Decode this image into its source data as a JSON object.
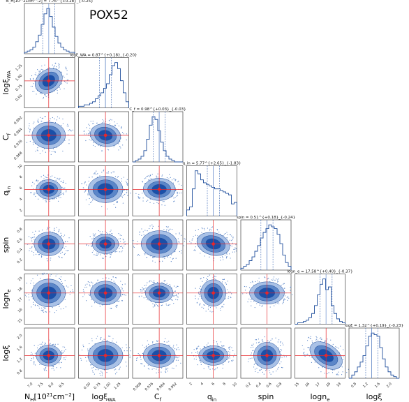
{
  "chart_data": {
    "type": "corner",
    "object_name": "POX52",
    "parameters": [
      {
        "key": "nh",
        "label_base": "N",
        "label_sub": "H",
        "label_rest": "[10",
        "label_sup": "21",
        "label_end": "cm",
        "label_sup2": "−2",
        "label_close": "]",
        "ticks": [
          "7.0",
          "7.5",
          "8.0",
          "8.5"
        ],
        "range": [
          6.6,
          9.0
        ],
        "median": 7.76,
        "title": "NH[10²¹cm⁻²] = 7.76 +0.28 −0.25"
      },
      {
        "key": "xiwa",
        "label_base": "logξ",
        "label_sub": "WA",
        "ticks": [
          "0.50",
          "0.75",
          "1.00",
          "1.25"
        ],
        "range": [
          0.2,
          1.45
        ],
        "median": 0.87,
        "title": "logξWA = 0.87 +0.18 −0.20"
      },
      {
        "key": "cf",
        "label_base": "C",
        "label_sub": "f",
        "ticks": [
          "0.968",
          "0.976",
          "0.984",
          "0.992"
        ],
        "range": [
          0.962,
          0.996
        ],
        "median": 0.98,
        "title": "Cf = 0.98 +0.03 −0.03"
      },
      {
        "key": "qin",
        "label_base": "q",
        "label_sub": "in",
        "ticks": [
          "2",
          "4",
          "6",
          "8",
          "10"
        ],
        "range": [
          1,
          10
        ],
        "median": 5.77,
        "title": "qin = 5.77 +2.65 −1.83"
      },
      {
        "key": "spin",
        "label_base": "spin",
        "label_sub": "",
        "ticks": [
          "0.2",
          "0.4",
          "0.6",
          "0.8"
        ],
        "range": [
          0.0,
          0.98
        ],
        "median": 0.51,
        "title": "spin = 0.51 +0.18 −0.24"
      },
      {
        "key": "ne",
        "label_base": "logn",
        "label_sub": "e",
        "ticks": [
          "15",
          "16",
          "17",
          "18",
          "19"
        ],
        "range": [
          14.6,
          19.4
        ],
        "median": 17.58,
        "title": "logne = 17.58 +0.40 −0.37"
      },
      {
        "key": "xi",
        "label_base": "logξ",
        "label_sub": "",
        "ticks": [
          "0.8",
          "1.2",
          "1.6",
          "2.0"
        ],
        "range": [
          0.55,
          2.25
        ],
        "median": 1.32,
        "title": "logξ = 1.32 +0.19 −0.23"
      }
    ],
    "diag_titles": [
      "N_H[10^21cm^-2] = 7.76^{+0.28}_{-0.25}",
      "logξ_WA = 0.87^{+0.18}_{-0.20}",
      "C_f = 0.98^{+0.03}_{-0.03}",
      "q_in = 5.77^{+2.65}_{-1.83}",
      "spin = 0.51^{+0.18}_{-0.24}",
      "logn_e = 17.58^{+0.40}_{-0.37}",
      "logξ = 1.32^{+0.19}_{-0.23}"
    ],
    "histograms": [
      [
        1,
        2,
        3,
        5,
        9,
        14,
        22,
        30,
        34,
        28,
        20,
        13,
        8,
        5,
        3,
        2,
        1,
        1
      ],
      [
        1,
        1,
        2,
        2,
        3,
        4,
        6,
        8,
        10,
        13,
        16,
        22,
        28,
        30,
        26,
        18,
        10,
        4
      ],
      [
        0,
        1,
        2,
        4,
        8,
        16,
        26,
        32,
        30,
        22,
        14,
        8,
        4,
        2,
        1,
        0,
        0,
        0
      ],
      [
        4,
        6,
        18,
        30,
        28,
        24,
        22,
        21,
        20,
        19,
        18,
        18,
        17,
        16,
        15,
        14,
        8,
        9
      ],
      [
        1,
        2,
        3,
        5,
        7,
        10,
        13,
        17,
        20,
        22,
        24,
        23,
        22,
        19,
        14,
        8,
        4,
        2
      ],
      [
        0,
        1,
        1,
        2,
        3,
        5,
        8,
        14,
        22,
        30,
        34,
        26,
        28,
        14,
        8,
        4,
        2,
        1
      ],
      [
        0,
        2,
        4,
        7,
        10,
        14,
        20,
        26,
        28,
        27,
        26,
        19,
        12,
        7,
        4,
        2,
        1,
        0
      ]
    ],
    "colors": {
      "contour_dark": "#1a4fa8",
      "contour_mid": "#5b86c8",
      "contour_light": "#a9c1e6",
      "line": "#1f4e9c",
      "marker": "#e8262a",
      "truth": "#e8262a",
      "quantile": "#3a67b4"
    }
  },
  "labels": {
    "object_name": "POX52",
    "x_nh": "N",
    "x_nh_sub": "H",
    "x_nh_rest": "[10",
    "x_nh_sup": "21",
    "x_nh_end": "cm",
    "x_nh_sup2": "−2",
    "x_nh_close": "]"
  }
}
